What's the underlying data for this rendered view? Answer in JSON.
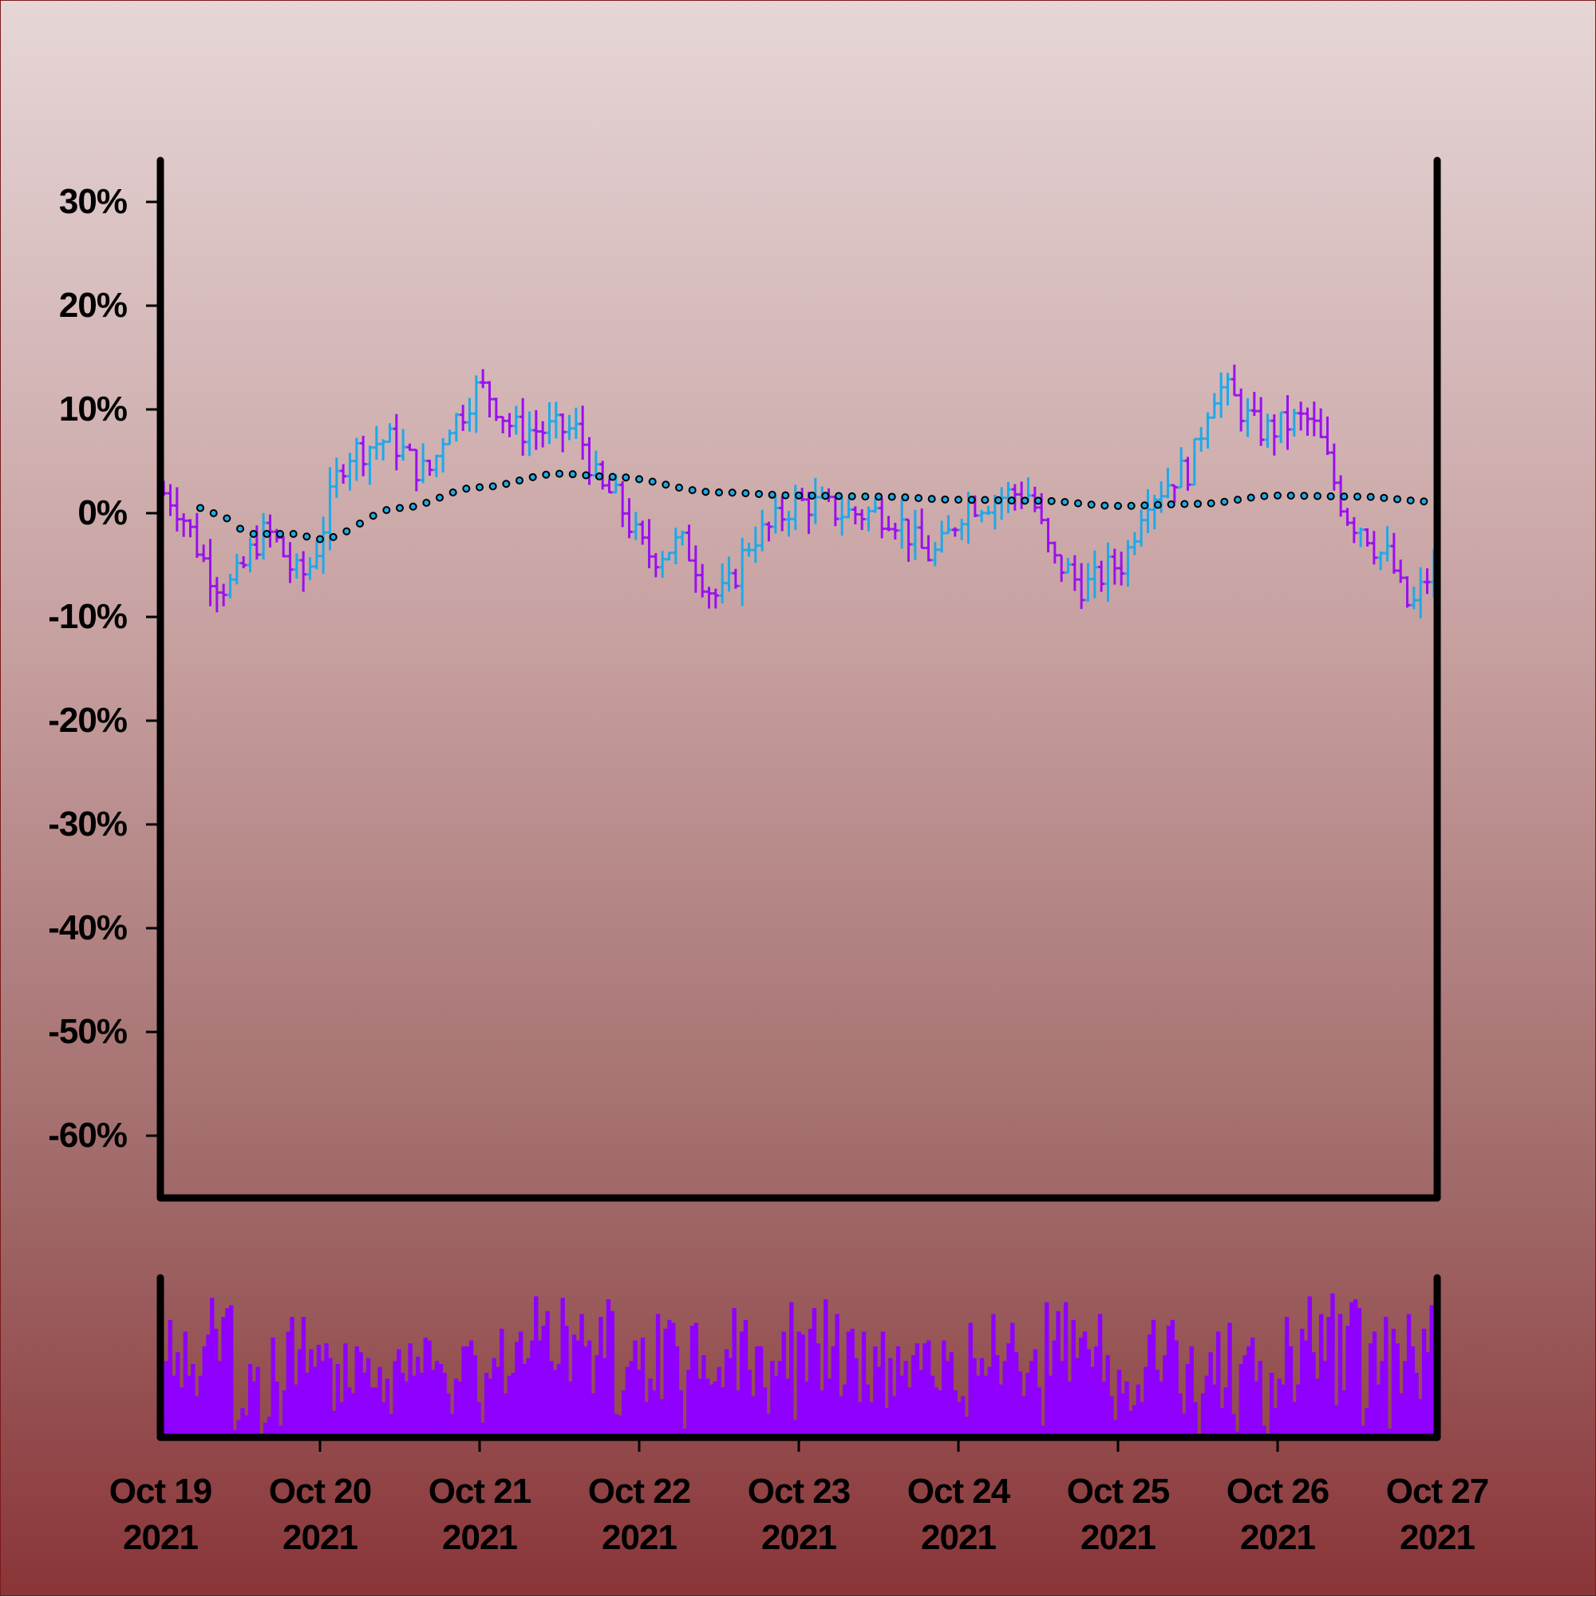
{
  "chart_data": [
    {
      "type": "ohlc",
      "title": "",
      "xlabel": "",
      "ylabel": "",
      "x_range": [
        "2021-10-19T00:00",
        "2021-10-27T00:00"
      ],
      "ylim": [
        -0.66,
        0.34
      ],
      "yticks": [
        0.3,
        0.2,
        0.1,
        0.0,
        -0.1,
        -0.2,
        -0.3,
        -0.4,
        -0.5,
        -0.6
      ],
      "ytick_labels": [
        "30%",
        "20%",
        "10%",
        "0%",
        "-10%",
        "-20%",
        "-30%",
        "-40%",
        "-50%",
        "-60%"
      ],
      "bar_interval_hours": 1,
      "up_color": "#1fa9e8",
      "down_color": "#9a10f0",
      "price_anchor_points": [
        [
          "2021-10-19T00:00",
          0.02
        ],
        [
          "2021-10-19T10:00",
          -0.07
        ],
        [
          "2021-10-19T16:00",
          -0.02
        ],
        [
          "2021-10-19T21:00",
          -0.06
        ],
        [
          "2021-10-20T05:00",
          0.06
        ],
        [
          "2021-10-20T10:00",
          0.07
        ],
        [
          "2021-10-20T16:00",
          0.04
        ],
        [
          "2021-10-20T20:00",
          0.09
        ],
        [
          "2021-10-21T00:00",
          0.12
        ],
        [
          "2021-10-21T06:00",
          0.08
        ],
        [
          "2021-10-21T14:00",
          0.08
        ],
        [
          "2021-10-21T19:00",
          0.02
        ],
        [
          "2021-10-22T02:00",
          -0.04
        ],
        [
          "2021-10-22T06:00",
          -0.03
        ],
        [
          "2021-10-22T12:00",
          -0.08
        ],
        [
          "2021-10-22T18:00",
          -0.02
        ],
        [
          "2021-10-23T00:00",
          0.01
        ],
        [
          "2021-10-23T08:00",
          0.0
        ],
        [
          "2021-10-23T13:00",
          0.0
        ],
        [
          "2021-10-23T20:00",
          -0.04
        ],
        [
          "2021-10-24T02:00",
          0.01
        ],
        [
          "2021-10-24T10:00",
          0.02
        ],
        [
          "2021-10-24T15:00",
          -0.05
        ],
        [
          "2021-10-24T19:00",
          -0.07
        ],
        [
          "2021-10-25T00:00",
          -0.05
        ],
        [
          "2021-10-25T05:00",
          0.02
        ],
        [
          "2021-10-25T10:00",
          0.04
        ],
        [
          "2021-10-25T15:00",
          0.12
        ],
        [
          "2021-10-25T22:00",
          0.08
        ],
        [
          "2021-10-26T04:00",
          0.09
        ],
        [
          "2021-10-26T12:00",
          -0.01
        ],
        [
          "2021-10-26T16:00",
          -0.04
        ],
        [
          "2021-10-26T20:00",
          -0.09
        ],
        [
          "2021-10-26T23:00",
          -0.06
        ]
      ],
      "overlay": {
        "type": "line-markers",
        "color": "#000000",
        "marker_fill": "#1fa9e8",
        "interval_hours": 2,
        "points": [
          [
            "2021-10-19T00:00",
            0.034
          ],
          [
            "2021-10-19T08:00",
            0.0
          ],
          [
            "2021-10-19T14:00",
            -0.02
          ],
          [
            "2021-10-19T20:00",
            -0.02
          ],
          [
            "2021-10-20T00:00",
            -0.025
          ],
          [
            "2021-10-20T12:00",
            0.005
          ],
          [
            "2021-10-21T00:00",
            0.025
          ],
          [
            "2021-10-21T12:00",
            0.038
          ],
          [
            "2021-10-21T20:00",
            0.035
          ],
          [
            "2021-10-22T12:00",
            0.02
          ],
          [
            "2021-10-23T00:00",
            0.017
          ],
          [
            "2021-10-23T12:00",
            0.016
          ],
          [
            "2021-10-24T00:00",
            0.013
          ],
          [
            "2021-10-24T12:00",
            0.012
          ],
          [
            "2021-10-25T00:00",
            0.007
          ],
          [
            "2021-10-25T12:00",
            0.009
          ],
          [
            "2021-10-26T00:00",
            0.017
          ],
          [
            "2021-10-26T12:00",
            0.016
          ],
          [
            "2021-10-27T00:00",
            0.011
          ]
        ]
      }
    },
    {
      "type": "bar",
      "title": "",
      "xlabel": "",
      "ylabel": "",
      "x_range": [
        "2021-10-19T00:00",
        "2021-10-27T00:00"
      ],
      "bar_color": "#8f00ff",
      "xticks": [
        "2021-10-19",
        "2021-10-20",
        "2021-10-21",
        "2021-10-22",
        "2021-10-23",
        "2021-10-24",
        "2021-10-25",
        "2021-10-26",
        "2021-10-27"
      ],
      "xtick_labels": [
        [
          "Oct 19",
          "2021"
        ],
        [
          "Oct 20",
          "2021"
        ],
        [
          "Oct 21",
          "2021"
        ],
        [
          "Oct 22",
          "2021"
        ],
        [
          "Oct 23",
          "2021"
        ],
        [
          "Oct 24",
          "2021"
        ],
        [
          "Oct 25",
          "2021"
        ],
        [
          "Oct 26",
          "2021"
        ],
        [
          "Oct 27",
          "2021"
        ]
      ],
      "values": [
        0.18,
        0.52,
        0.8,
        0.42,
        0.58,
        0.34,
        0.72,
        0.42,
        0.5,
        0.28,
        0.42,
        0.62,
        0.7,
        0.95,
        0.74,
        0.52,
        0.82,
        0.88,
        0.9,
        0.05,
        0.12,
        0.2,
        0.15,
        0.5,
        0.38,
        0.48,
        0.02,
        0.1,
        0.14,
        0.68,
        0.38,
        0.08,
        0.32,
        0.72,
        0.82,
        0.36,
        0.6,
        0.82,
        0.44,
        0.6,
        0.48,
        0.63,
        0.52,
        0.64,
        0.54,
        0.18,
        0.5,
        0.24,
        0.64,
        0.34,
        0.3,
        0.62,
        0.58,
        0.44,
        0.54,
        0.34,
        0.34,
        0.48,
        0.24,
        0.4,
        0.16,
        0.52,
        0.6,
        0.44,
        0.38,
        0.64,
        0.42,
        0.55,
        0.44,
        0.68,
        0.66,
        0.46,
        0.52,
        0.5,
        0.44,
        0.3,
        0.16,
        0.4,
        0.38,
        0.62,
        0.62,
        0.66,
        0.56,
        0.24,
        0.1,
        0.44,
        0.4,
        0.54,
        0.48,
        0.74,
        0.3,
        0.42,
        0.44,
        0.65,
        0.72,
        0.5,
        0.54,
        0.66,
        0.96,
        0.66,
        0.76,
        0.86,
        0.52,
        0.46,
        0.5,
        0.95,
        0.76,
        0.38,
        0.7,
        0.66,
        0.84,
        0.62,
        0.66,
        0.3,
        0.56,
        0.82,
        0.54,
        0.94,
        0.86,
        0.16,
        0.15,
        0.32,
        0.48,
        0.52,
        0.66,
        0.46,
        0.68,
        0.24,
        0.4,
        0.32,
        0.84,
        0.26,
        0.74,
        0.8,
        0.78,
        0.62,
        0.32,
        0.06,
        0.46,
        0.76,
        0.78,
        0.4,
        0.56,
        0.4,
        0.36,
        0.38,
        0.48,
        0.34,
        0.6,
        0.54,
        0.88,
        0.32,
        0.72,
        0.8,
        0.46,
        0.28,
        0.62,
        0.62,
        0.34,
        0.16,
        0.52,
        0.42,
        0.52,
        0.72,
        0.4,
        0.92,
        0.12,
        0.72,
        0.7,
        0.38,
        0.74,
        0.88,
        0.64,
        0.32,
        0.94,
        0.4,
        0.62,
        0.84,
        0.28,
        0.36,
        0.72,
        0.74,
        0.54,
        0.24,
        0.72,
        0.36,
        0.24,
        0.62,
        0.48,
        0.72,
        0.2,
        0.54,
        0.28,
        0.62,
        0.42,
        0.52,
        0.34,
        0.56,
        0.64,
        0.46,
        0.64,
        0.66,
        0.42,
        0.34,
        0.32,
        0.66,
        0.52,
        0.58,
        0.32,
        0.24,
        0.28,
        0.14,
        0.78,
        0.54,
        0.42,
        0.54,
        0.42,
        0.48,
        0.84,
        0.56,
        0.36,
        0.52,
        0.64,
        0.78,
        0.58,
        0.45,
        0.28,
        0.44,
        0.52,
        0.6,
        0.34,
        0.08,
        0.92,
        0.42,
        0.66,
        0.86,
        0.52,
        0.92,
        0.38,
        0.8,
        0.54,
        0.68,
        0.72,
        0.6,
        0.48,
        0.62,
        0.84,
        0.38,
        0.56,
        0.28,
        0.12,
        0.46,
        0.3,
        0.38,
        0.18,
        0.22,
        0.36,
        0.24,
        0.48,
        0.7,
        0.8,
        0.46,
        0.38,
        0.56,
        0.76,
        0.8,
        0.66,
        0.3,
        0.16,
        0.5,
        0.62,
        0.24,
        0.02,
        0.3,
        0.42,
        0.58,
        0.36,
        0.72,
        0.2,
        0.34,
        0.78,
        0.16,
        0.04,
        0.5,
        0.56,
        0.62,
        0.68,
        0.38,
        0.52,
        0.08,
        0.02,
        0.44,
        0.2,
        0.4,
        0.36,
        0.82,
        0.62,
        0.24,
        0.36,
        0.74,
        0.66,
        0.96,
        0.58,
        0.4,
        0.84,
        0.52,
        0.82,
        0.98,
        0.22,
        0.84,
        0.32,
        0.76,
        0.92,
        0.94,
        0.88,
        0.08,
        0.2,
        0.64,
        0.72,
        0.36,
        0.52,
        0.82,
        0.06,
        0.74,
        0.64,
        0.3,
        0.52,
        0.84,
        0.62,
        0.44,
        0.26,
        0.74,
        0.58,
        0.9,
        0.32
      ]
    }
  ]
}
